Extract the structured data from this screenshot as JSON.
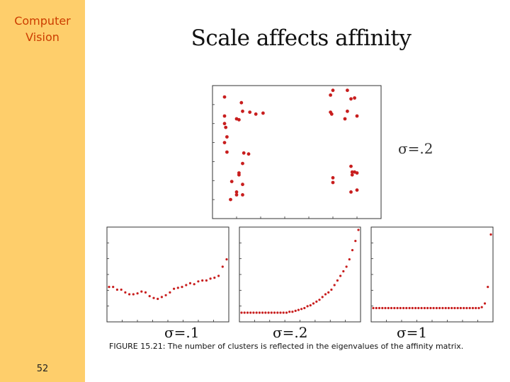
{
  "sidebar": {
    "title_line1": "Computer",
    "title_line2": "Vision",
    "page_number": "52",
    "color": "#fece6b",
    "title_color": "#cc3d00"
  },
  "slide": {
    "title": "Scale affects affinity"
  },
  "figure": {
    "caption": "FIGURE 15.21:  The number of clusters is reflected in the eigenvalues of the affinity matrix.",
    "point_color": "#c81e1e",
    "scatter_label": "σ=.2",
    "panel_labels": [
      "σ=.1",
      "σ=.2",
      "σ=1"
    ]
  },
  "chart_data": [
    {
      "type": "scatter",
      "title": "",
      "xlim": [
        -0.2,
        1.2
      ],
      "ylim": [
        -0.2,
        1.2
      ],
      "points": [
        [
          -0.1,
          1.08
        ],
        [
          0.04,
          1.02
        ],
        [
          0.05,
          0.93
        ],
        [
          0.11,
          0.92
        ],
        [
          -0.1,
          0.88
        ],
        [
          0.0,
          0.85
        ],
        [
          0.02,
          0.84
        ],
        [
          0.16,
          0.9
        ],
        [
          0.22,
          0.91
        ],
        [
          -0.1,
          0.8
        ],
        [
          -0.09,
          0.76
        ],
        [
          -0.08,
          0.66
        ],
        [
          -0.1,
          0.6
        ],
        [
          0.8,
          1.15
        ],
        [
          0.78,
          1.1
        ],
        [
          0.92,
          1.15
        ],
        [
          0.95,
          1.06
        ],
        [
          0.98,
          1.07
        ],
        [
          0.78,
          0.92
        ],
        [
          0.79,
          0.9
        ],
        [
          0.92,
          0.93
        ],
        [
          1.0,
          0.88
        ],
        [
          0.9,
          0.85
        ],
        [
          0.06,
          0.49
        ],
        [
          0.1,
          0.48
        ],
        [
          0.05,
          0.38
        ],
        [
          -0.08,
          0.5
        ],
        [
          0.02,
          0.28
        ],
        [
          0.02,
          0.26
        ],
        [
          -0.04,
          0.19
        ],
        [
          0.05,
          0.16
        ],
        [
          0.0,
          0.08
        ],
        [
          0.0,
          0.05
        ],
        [
          0.05,
          0.05
        ],
        [
          -0.05,
          0.0
        ],
        [
          0.95,
          0.35
        ],
        [
          0.98,
          0.29
        ],
        [
          0.96,
          0.26
        ],
        [
          1.0,
          0.28
        ],
        [
          0.96,
          0.29
        ],
        [
          0.8,
          0.23
        ],
        [
          0.95,
          0.08
        ],
        [
          0.8,
          0.18
        ],
        [
          1.0,
          0.1
        ]
      ]
    },
    {
      "type": "scatter",
      "name": "σ=.1",
      "x": [
        1,
        2,
        3,
        4,
        5,
        6,
        7,
        8,
        9,
        10,
        11,
        12,
        13,
        14,
        15,
        16,
        17,
        18,
        19,
        20,
        21,
        22,
        23,
        24,
        25,
        26,
        27,
        28,
        29,
        30
      ],
      "y": [
        0.38,
        0.38,
        0.35,
        0.35,
        0.32,
        0.3,
        0.3,
        0.31,
        0.33,
        0.32,
        0.28,
        0.26,
        0.25,
        0.27,
        0.29,
        0.32,
        0.36,
        0.37,
        0.38,
        0.4,
        0.42,
        0.41,
        0.44,
        0.45,
        0.45,
        0.47,
        0.48,
        0.5,
        0.6,
        0.68
      ]
    },
    {
      "type": "scatter",
      "name": "σ=.2",
      "x": [
        1,
        2,
        3,
        4,
        5,
        6,
        7,
        8,
        9,
        10,
        11,
        12,
        13,
        14,
        15,
        16,
        17,
        18,
        19,
        20,
        21,
        22,
        23,
        24,
        25,
        26,
        27,
        28,
        29,
        30,
        31,
        32,
        33,
        34,
        35,
        36,
        37,
        38,
        39,
        40
      ],
      "y": [
        0.1,
        0.1,
        0.1,
        0.1,
        0.1,
        0.1,
        0.1,
        0.1,
        0.1,
        0.1,
        0.1,
        0.1,
        0.1,
        0.1,
        0.1,
        0.1,
        0.11,
        0.11,
        0.12,
        0.13,
        0.14,
        0.15,
        0.17,
        0.18,
        0.2,
        0.22,
        0.24,
        0.27,
        0.3,
        0.32,
        0.35,
        0.4,
        0.45,
        0.5,
        0.55,
        0.6,
        0.68,
        0.78,
        0.88,
        1.0
      ]
    },
    {
      "type": "scatter",
      "name": "σ=1",
      "x": [
        1,
        2,
        3,
        4,
        5,
        6,
        7,
        8,
        9,
        10,
        11,
        12,
        13,
        14,
        15,
        16,
        17,
        18,
        19,
        20,
        21,
        22,
        23,
        24,
        25,
        26,
        27,
        28,
        29,
        30,
        31,
        32,
        33,
        34,
        35,
        36,
        37,
        38,
        39,
        40
      ],
      "y": [
        0.15,
        0.15,
        0.15,
        0.15,
        0.15,
        0.15,
        0.15,
        0.15,
        0.15,
        0.15,
        0.15,
        0.15,
        0.15,
        0.15,
        0.15,
        0.15,
        0.15,
        0.15,
        0.15,
        0.15,
        0.15,
        0.15,
        0.15,
        0.15,
        0.15,
        0.15,
        0.15,
        0.15,
        0.15,
        0.15,
        0.15,
        0.15,
        0.15,
        0.15,
        0.15,
        0.15,
        0.16,
        0.2,
        0.38,
        0.95
      ]
    }
  ]
}
